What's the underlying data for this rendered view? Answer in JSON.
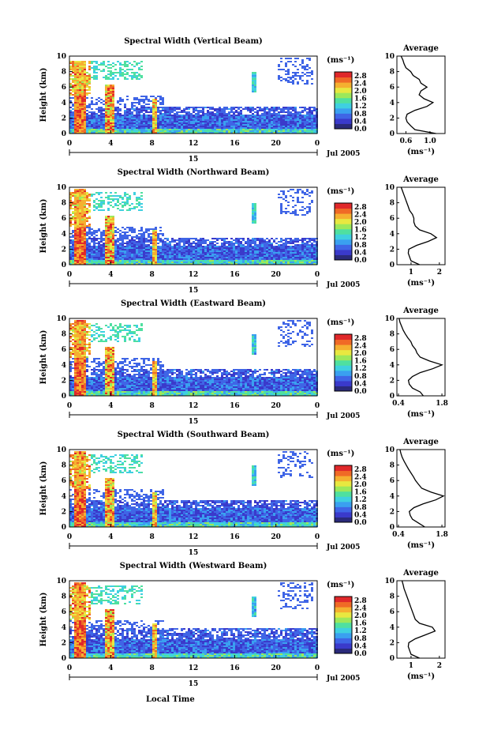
{
  "chart_data": [
    {
      "type": "heatmap",
      "title": "Spectral Width (Vertical Beam)",
      "ylabel": "Height (km)",
      "ylim": [
        0,
        10
      ],
      "xlim": [
        0,
        24
      ],
      "x_ticks": [
        "0",
        "4",
        "8",
        "12",
        "16",
        "20",
        "0"
      ],
      "date_ticks": [
        "15"
      ],
      "date_label": "Jul 2005",
      "y_ticks": [
        "0",
        "2",
        "4",
        "6",
        "8",
        "10"
      ],
      "colorbar": {
        "unit": "(ms⁻¹)",
        "ticks": [
          "0.0",
          "0.4",
          "0.8",
          "1.2",
          "1.6",
          "2.0",
          "2.4",
          "2.8"
        ],
        "range": [
          0,
          3.0
        ]
      },
      "average_profile": {
        "title": "Average",
        "xlabel": "(ms⁻¹)",
        "x_ticks": [
          "0.6",
          "1.0"
        ],
        "xlim": [
          0.45,
          1.25
        ],
        "heights": [
          0,
          0.5,
          1,
          1.5,
          2,
          2.5,
          3,
          3.5,
          4,
          4.5,
          5,
          5.5,
          6,
          6.5,
          7,
          7.5,
          8,
          8.5,
          9,
          9.5,
          10
        ],
        "values": [
          1.1,
          0.75,
          0.68,
          0.62,
          0.6,
          0.62,
          0.75,
          0.95,
          1.05,
          0.9,
          0.82,
          0.85,
          0.95,
          0.85,
          0.82,
          0.72,
          0.68,
          0.6,
          0.57,
          0.55,
          0.52
        ]
      }
    },
    {
      "type": "heatmap",
      "title": "Spectral Width (Northward Beam)",
      "ylabel": "Height (km)",
      "ylim": [
        0,
        10
      ],
      "xlim": [
        0,
        24
      ],
      "x_ticks": [
        "0",
        "4",
        "8",
        "12",
        "16",
        "20",
        "0"
      ],
      "date_ticks": [
        "15"
      ],
      "date_label": "Jul 2005",
      "y_ticks": [
        "0",
        "2",
        "4",
        "6",
        "8",
        "10"
      ],
      "colorbar": {
        "unit": "(ms⁻¹)",
        "ticks": [
          "0.0",
          "0.4",
          "0.8",
          "1.2",
          "1.6",
          "2.0",
          "2.4",
          "2.8"
        ],
        "range": [
          0,
          3.0
        ]
      },
      "average_profile": {
        "title": "Average",
        "xlabel": "(ms⁻¹)",
        "x_ticks": [
          "1",
          "2"
        ],
        "xlim": [
          0.5,
          2.2
        ],
        "heights": [
          0,
          0.5,
          1,
          1.5,
          2,
          2.5,
          3,
          3.5,
          4,
          4.5,
          5,
          5.5,
          6,
          6.5,
          7,
          7.5,
          8,
          8.5,
          9,
          9.5,
          10
        ],
        "values": [
          1.3,
          1.0,
          0.95,
          0.9,
          0.92,
          1.2,
          1.6,
          1.9,
          1.7,
          1.3,
          1.15,
          1.1,
          1.1,
          1.05,
          0.95,
          0.9,
          0.85,
          0.8,
          0.75,
          0.7,
          0.65
        ]
      }
    },
    {
      "type": "heatmap",
      "title": "Spectral Width (Eastward Beam)",
      "ylabel": "Height (km)",
      "ylim": [
        0,
        10
      ],
      "xlim": [
        0,
        24
      ],
      "x_ticks": [
        "0",
        "4",
        "8",
        "12",
        "16",
        "20",
        "0"
      ],
      "date_ticks": [
        "15"
      ],
      "date_label": "Jul 2005",
      "y_ticks": [
        "0",
        "2",
        "4",
        "6",
        "8",
        "10"
      ],
      "colorbar": {
        "unit": "(ms⁻¹)",
        "ticks": [
          "0.0",
          "0.4",
          "0.8",
          "1.2",
          "1.6",
          "2.0",
          "2.4",
          "2.8"
        ],
        "range": [
          0,
          3.0
        ]
      },
      "average_profile": {
        "title": "Average",
        "xlabel": "(ms⁻¹)",
        "x_ticks": [
          "0.4",
          "1.8"
        ],
        "xlim": [
          0.35,
          1.9
        ],
        "heights": [
          0,
          0.5,
          1,
          1.5,
          2,
          2.5,
          3,
          3.5,
          4,
          4.5,
          5,
          5.5,
          6,
          6.5,
          7,
          7.5,
          8,
          8.5,
          9,
          9.5,
          10
        ],
        "values": [
          1.2,
          1.1,
          0.85,
          0.75,
          0.72,
          0.85,
          1.1,
          1.5,
          1.8,
          1.4,
          1.1,
          1.0,
          0.95,
          0.85,
          0.8,
          0.7,
          0.62,
          0.55,
          0.5,
          0.45,
          0.42
        ]
      }
    },
    {
      "type": "heatmap",
      "title": "Spectral Width (Southward Beam)",
      "ylabel": "Height (km)",
      "ylim": [
        0,
        10
      ],
      "xlim": [
        0,
        24
      ],
      "x_ticks": [
        "0",
        "4",
        "8",
        "12",
        "16",
        "20",
        "0"
      ],
      "date_ticks": [
        "15"
      ],
      "date_label": "Jul 2005",
      "y_ticks": [
        "0",
        "2",
        "4",
        "6",
        "8",
        "10"
      ],
      "colorbar": {
        "unit": "(ms⁻¹)",
        "ticks": [
          "0.0",
          "0.4",
          "0.8",
          "1.2",
          "1.6",
          "2.0",
          "2.4",
          "2.8"
        ],
        "range": [
          0,
          3.0
        ]
      },
      "average_profile": {
        "title": "Average",
        "xlabel": "(ms⁻¹)",
        "x_ticks": [
          "0.4",
          "1.8"
        ],
        "xlim": [
          0.35,
          1.9
        ],
        "heights": [
          0,
          0.5,
          1,
          1.5,
          2,
          2.5,
          3,
          3.5,
          4,
          4.5,
          5,
          5.5,
          6,
          6.5,
          7,
          7.5,
          8,
          8.5,
          9,
          9.5,
          10
        ],
        "values": [
          1.25,
          1.05,
          0.85,
          0.78,
          0.75,
          0.9,
          1.2,
          1.6,
          1.85,
          1.45,
          1.15,
          1.05,
          0.95,
          0.88,
          0.8,
          0.72,
          0.65,
          0.58,
          0.52,
          0.48,
          0.45
        ]
      }
    },
    {
      "type": "heatmap",
      "title": "Spectral Width (Westward Beam)",
      "ylabel": "Height (km)",
      "xlabel": "Local Time",
      "ylim": [
        0,
        10
      ],
      "xlim": [
        0,
        24
      ],
      "x_ticks": [
        "0",
        "4",
        "8",
        "12",
        "16",
        "20",
        "0"
      ],
      "date_ticks": [
        "15"
      ],
      "date_label": "Jul 2005",
      "y_ticks": [
        "0",
        "2",
        "4",
        "6",
        "8",
        "10"
      ],
      "colorbar": {
        "unit": "(ms⁻¹)",
        "ticks": [
          "0.0",
          "0.4",
          "0.8",
          "1.2",
          "1.6",
          "2.0",
          "2.4",
          "2.8"
        ],
        "range": [
          0,
          3.0
        ]
      },
      "average_profile": {
        "title": "Average",
        "xlabel": "(ms⁻¹)",
        "x_ticks": [
          "1",
          "2"
        ],
        "xlim": [
          0.5,
          2.2
        ],
        "heights": [
          0,
          0.5,
          1,
          1.5,
          2,
          2.5,
          3,
          3.5,
          4,
          4.5,
          5,
          5.5,
          6,
          6.5,
          7,
          7.5,
          8,
          8.5,
          9,
          9.5,
          10
        ],
        "values": [
          1.3,
          1.0,
          0.95,
          0.9,
          0.92,
          1.15,
          1.5,
          1.85,
          1.75,
          1.3,
          1.15,
          1.1,
          1.05,
          1.0,
          0.95,
          0.9,
          0.85,
          0.8,
          0.75,
          0.72,
          0.68
        ]
      }
    }
  ],
  "colors": {
    "scale": [
      "#2a2a7a",
      "#3a3acb",
      "#3f65e6",
      "#3aa0f0",
      "#3fd0e0",
      "#4fe0a0",
      "#9de85a",
      "#e8e840",
      "#f5b030",
      "#f06a26",
      "#e0282a"
    ],
    "axis": "#000000"
  }
}
